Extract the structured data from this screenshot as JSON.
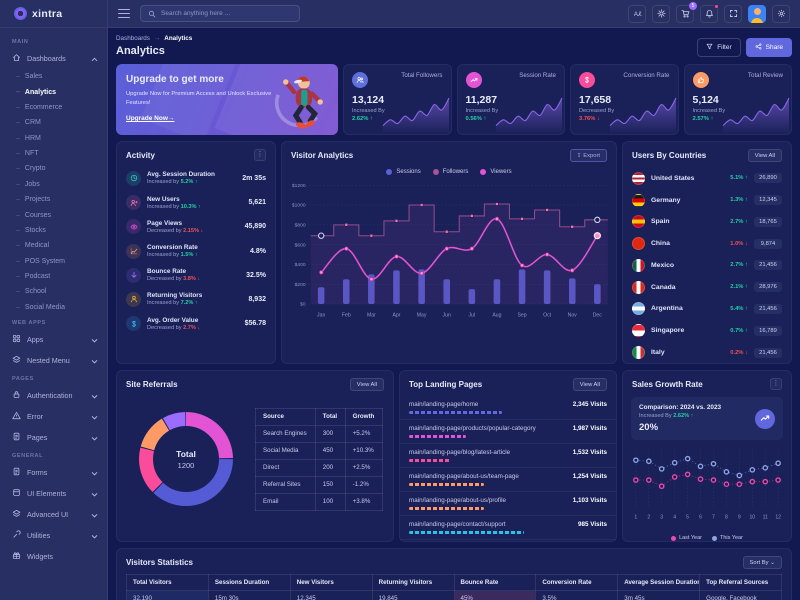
{
  "theme": {
    "accent": "#6168dd",
    "success": "#26d0a8",
    "danger": "#f05252",
    "magenta": "#e354d4",
    "pink": "#fb4b9b",
    "orange": "#fd9a66",
    "purple": "#9b6cfd",
    "cyan": "#22c7e5"
  },
  "header": {
    "logo": "xintra",
    "search_placeholder": "Search anything here ...",
    "cart_badge": "5"
  },
  "sidebar": {
    "labels": {
      "main": "MAIN",
      "web_apps": "WEB APPS",
      "pages": "PAGES",
      "general": "GENERAL"
    },
    "dashboards": {
      "label": "Dashboards",
      "icon": "home"
    },
    "dashboard_items": [
      {
        "label": "Sales"
      },
      {
        "label": "Analytics",
        "state": "active"
      },
      {
        "label": "Ecommerce"
      },
      {
        "label": "CRM"
      },
      {
        "label": "HRM"
      },
      {
        "label": "NFT"
      },
      {
        "label": "Crypto"
      },
      {
        "label": "Jobs"
      },
      {
        "label": "Projects"
      },
      {
        "label": "Courses"
      },
      {
        "label": "Stocks"
      },
      {
        "label": "Medical"
      },
      {
        "label": "POS System"
      },
      {
        "label": "Podcast"
      },
      {
        "label": "School"
      },
      {
        "label": "Social Media"
      }
    ],
    "web_apps_items": [
      {
        "label": "Apps",
        "icon": "grid",
        "chevron": true
      },
      {
        "label": "Nested Menu",
        "icon": "layers",
        "chevron": true
      }
    ],
    "pages_items": [
      {
        "label": "Authentication",
        "icon": "lock",
        "chevron": true
      },
      {
        "label": "Error",
        "icon": "alert",
        "chevron": true
      },
      {
        "label": "Pages",
        "icon": "file",
        "chevron": true
      }
    ],
    "general_items": [
      {
        "label": "Forms",
        "icon": "file",
        "chevron": true
      },
      {
        "label": "UI Elements",
        "icon": "box",
        "chevron": true
      },
      {
        "label": "Advanced UI",
        "icon": "layers",
        "chevron": true
      },
      {
        "label": "Utilities",
        "icon": "tool",
        "chevron": true
      },
      {
        "label": "Widgets",
        "icon": "gift",
        "chevron": false
      }
    ]
  },
  "page": {
    "breadcrumb_1": "Dashboards",
    "breadcrumb_2": "Analytics",
    "title": "Analytics",
    "filter_label": "Filter",
    "share_label": "Share"
  },
  "upgrade": {
    "title": "Upgrade to get more",
    "text": "Upgrade Now for Premium Access and Unlock Exclusive Features!",
    "link": "Upgrade Now→"
  },
  "stats": [
    {
      "label": "Total Followers",
      "value": "13,124",
      "change_label": "Increased By",
      "change": "2.62%",
      "dir": "up",
      "icon": "users",
      "color": "#5f6fdb"
    },
    {
      "label": "Session Rate",
      "value": "11,287",
      "change_label": "Increased By",
      "change": "0.56%",
      "dir": "up",
      "icon": "trend",
      "color": "#e354d4"
    },
    {
      "label": "Conversion Rate",
      "value": "17,658",
      "change_label": "Decreased By",
      "change": "3.76%",
      "dir": "down",
      "icon": "dollar",
      "color": "#fb4b9b"
    },
    {
      "label": "Total Review",
      "value": "5,124",
      "change_label": "Increased By",
      "change": "2.57%",
      "dir": "up",
      "icon": "thumb",
      "color": "#fd9a66"
    }
  ],
  "activity": {
    "title": "Activity",
    "rows": [
      {
        "icon": "clock",
        "color": "#2dd4bf",
        "label": "Avg. Session Duration",
        "change_label": "Increased by",
        "change": "5.2%",
        "dir": "up",
        "value": "2m 35s"
      },
      {
        "icon": "user-plus",
        "color": "#f472b6",
        "label": "New Users",
        "change_label": "Increased by",
        "change": "10.3%",
        "dir": "up",
        "value": "5,621"
      },
      {
        "icon": "eye",
        "color": "#e354d4",
        "label": "Page Views",
        "change_label": "Decreased by",
        "change": "2.15%",
        "dir": "down",
        "value": "45,890"
      },
      {
        "icon": "chart",
        "color": "#fd9a66",
        "label": "Conversion Rate",
        "change_label": "Increased by",
        "change": "1.5%",
        "dir": "up",
        "value": "4.8%"
      },
      {
        "icon": "arrow-down",
        "color": "#9b6cfd",
        "label": "Bounce Rate",
        "change_label": "Decreased by",
        "change": "3.8%",
        "dir": "down",
        "value": "32.5%"
      },
      {
        "icon": "user",
        "color": "#fbbf24",
        "label": "Returning Visitors",
        "change_label": "Increased by",
        "change": "7.2%",
        "dir": "up",
        "value": "8,932"
      },
      {
        "icon": "dollar",
        "color": "#38bdf8",
        "label": "Avg. Order Value",
        "change_label": "Decreased by",
        "change": "2.7%",
        "dir": "down",
        "value": "$56.78"
      }
    ]
  },
  "visitor_analytics": {
    "title": "Visitor Analytics",
    "export_label": "Export"
  },
  "users_by_countries": {
    "title": "Users By Countries",
    "view_all": "View All",
    "rows": [
      {
        "name": "United States",
        "change": "5.1%",
        "dir": "up",
        "value": "26,890",
        "flag": {
          "dir": "h",
          "colors": [
            "#b22234",
            "#ffffff",
            "#b22234",
            "#ffffff",
            "#b22234"
          ]
        }
      },
      {
        "name": "Germany",
        "change": "1.3%",
        "dir": "up",
        "value": "12,345",
        "flag": {
          "dir": "h",
          "colors": [
            "#1a1a1a",
            "#dd0000",
            "#ffce00"
          ]
        }
      },
      {
        "name": "Spain",
        "change": "2.7%",
        "dir": "up",
        "value": "18,765",
        "flag": {
          "dir": "h",
          "colors": [
            "#c60b1e",
            "#ffc400",
            "#c60b1e"
          ]
        }
      },
      {
        "name": "China",
        "change": "1.0%",
        "dir": "down",
        "value": "9,874",
        "flag": {
          "dir": "h",
          "colors": [
            "#de2910",
            "#de2910"
          ]
        }
      },
      {
        "name": "Mexico",
        "change": "2.7%",
        "dir": "up",
        "value": "21,456",
        "flag": {
          "dir": "v",
          "colors": [
            "#006847",
            "#ffffff",
            "#ce1126"
          ]
        }
      },
      {
        "name": "Canada",
        "change": "2.1%",
        "dir": "up",
        "value": "28,976",
        "flag": {
          "dir": "v",
          "colors": [
            "#d52b1e",
            "#ffffff",
            "#d52b1e"
          ]
        }
      },
      {
        "name": "Argentina",
        "change": "5.4%",
        "dir": "up",
        "value": "21,456",
        "flag": {
          "dir": "h",
          "colors": [
            "#74acdf",
            "#ffffff",
            "#74acdf"
          ]
        }
      },
      {
        "name": "Singapore",
        "change": "0.7%",
        "dir": "up",
        "value": "16,789",
        "flag": {
          "dir": "h",
          "colors": [
            "#ed2939",
            "#ffffff"
          ]
        }
      },
      {
        "name": "Italy",
        "change": "0.2%",
        "dir": "down",
        "value": "21,456",
        "flag": {
          "dir": "v",
          "colors": [
            "#009246",
            "#ffffff",
            "#ce2b37"
          ]
        }
      }
    ]
  },
  "site_referrals": {
    "title": "Site Referrals",
    "view_all": "View All",
    "center_label": "Total",
    "center_value": "1200",
    "headers": [
      "Source",
      "Total",
      "Growth"
    ],
    "rows": [
      {
        "source": "Search Engines",
        "total": "300",
        "growth": "+5.2%",
        "dir": "up"
      },
      {
        "source": "Social Media",
        "total": "450",
        "growth": "+10.3%",
        "dir": "up"
      },
      {
        "source": "Direct",
        "total": "200",
        "growth": "+2.5%",
        "dir": "up"
      },
      {
        "source": "Referral Sites",
        "total": "150",
        "growth": "-1.2%",
        "dir": "down"
      },
      {
        "source": "Email",
        "total": "100",
        "growth": "+3.8%",
        "dir": "up"
      }
    ]
  },
  "top_landing_pages": {
    "title": "Top Landing Pages",
    "view_all": "View All",
    "rows": [
      {
        "path": "main/landing-page/home",
        "visits": "2,345 Visits",
        "percent": 47,
        "color": "#6369e2"
      },
      {
        "path": "main/landing-page/products/popular-category",
        "visits": "1,987 Visits",
        "percent": 29,
        "color": "#e354d4"
      },
      {
        "path": "main/landing-page/blog/latest-article",
        "visits": "1,532 Visits",
        "percent": 21,
        "color": "#fb4b9b"
      },
      {
        "path": "main/landing-page/about-us/team-page",
        "visits": "1,254 Visits",
        "percent": 38,
        "color": "#fd9a66"
      },
      {
        "path": "main/landing-page/about-us/profile",
        "visits": "1,103 Visits",
        "percent": 38,
        "color": "#fd9a66"
      },
      {
        "path": "main/landing-page/contact/support",
        "visits": "985 Visits",
        "percent": 58,
        "color": "#22c7e5"
      }
    ]
  },
  "sales_growth": {
    "title": "Sales Growth Rate",
    "comparison": "Comparison: 2024 vs. 2023",
    "change_label": "Increased By",
    "change": "2.62%",
    "dir": "up",
    "value": "20%"
  },
  "visitors_statistics": {
    "title": "Visitors Statistics",
    "sort_by": "Sort By",
    "headers": [
      "Total Visitors",
      "Sessions Duration",
      "New Visitors",
      "Returning Visitors",
      "Bounce Rate",
      "Conversion Rate",
      "Average Session Duration",
      "Top Referral Sources"
    ],
    "row": [
      "32,190",
      "15m 30s",
      "12,345",
      "19,845",
      "45%",
      "3.5%",
      "3m 45s",
      "Google, Facebook"
    ]
  },
  "chart_data": [
    {
      "id": "visitor-analytics",
      "type": "bar-line-combo",
      "title": "Visitor Analytics",
      "x": [
        "Jan",
        "Feb",
        "Mar",
        "Apr",
        "May",
        "Jun",
        "Jul",
        "Aug",
        "Sep",
        "Oct",
        "Nov",
        "Dec"
      ],
      "ylim": [
        0,
        1200
      ],
      "y_ticks": [
        "$0",
        "$200",
        "$400",
        "$600",
        "$800",
        "$1000",
        "$1200"
      ],
      "grid": "dashed-horizontal",
      "legend_position": "top",
      "series": [
        {
          "name": "Sessions",
          "type": "bar",
          "color": "#5961d6",
          "values": [
            170,
            250,
            300,
            340,
            350,
            250,
            150,
            250,
            350,
            340,
            260,
            200
          ]
        },
        {
          "name": "Followers",
          "type": "step",
          "color": "#a65397",
          "values": [
            690,
            800,
            690,
            840,
            1000,
            730,
            890,
            1010,
            860,
            950,
            780,
            850
          ]
        },
        {
          "name": "Viewers",
          "type": "line",
          "color": "#e354d4",
          "values": [
            320,
            560,
            250,
            480,
            310,
            560,
            560,
            860,
            390,
            500,
            340,
            690
          ]
        }
      ]
    },
    {
      "id": "site-referrals",
      "type": "pie",
      "title": "Site Referrals",
      "labels": [
        "Search Engines",
        "Social Media",
        "Direct",
        "Referral Sites",
        "Email"
      ],
      "values": [
        300,
        450,
        200,
        150,
        100
      ],
      "total": 1200,
      "colors": [
        "#e354d4",
        "#545bd4",
        "#fb4b9b",
        "#fd9a66",
        "#9b6cfd"
      ]
    },
    {
      "id": "sales-growth",
      "type": "scatter",
      "x": [
        1,
        2,
        3,
        4,
        5,
        6,
        7,
        8,
        9,
        10,
        11,
        12
      ],
      "ylim": [
        0,
        100
      ],
      "grid": "dashed-vertical",
      "legend_position": "bottom",
      "series": [
        {
          "name": "Last Year",
          "color": "#f048a8",
          "values": [
            46,
            46,
            34,
            52,
            57,
            48,
            46,
            38,
            38,
            43,
            43,
            46
          ]
        },
        {
          "name": "This Year",
          "color": "#8ea2e8",
          "values": [
            85,
            83,
            68,
            80,
            88,
            73,
            78,
            62,
            55,
            66,
            70,
            79
          ]
        }
      ]
    },
    {
      "id": "stat-sparkline",
      "type": "area",
      "color": "#8a66e8",
      "values": [
        12,
        28,
        18,
        38,
        26,
        52,
        40,
        70,
        55,
        88
      ]
    }
  ]
}
